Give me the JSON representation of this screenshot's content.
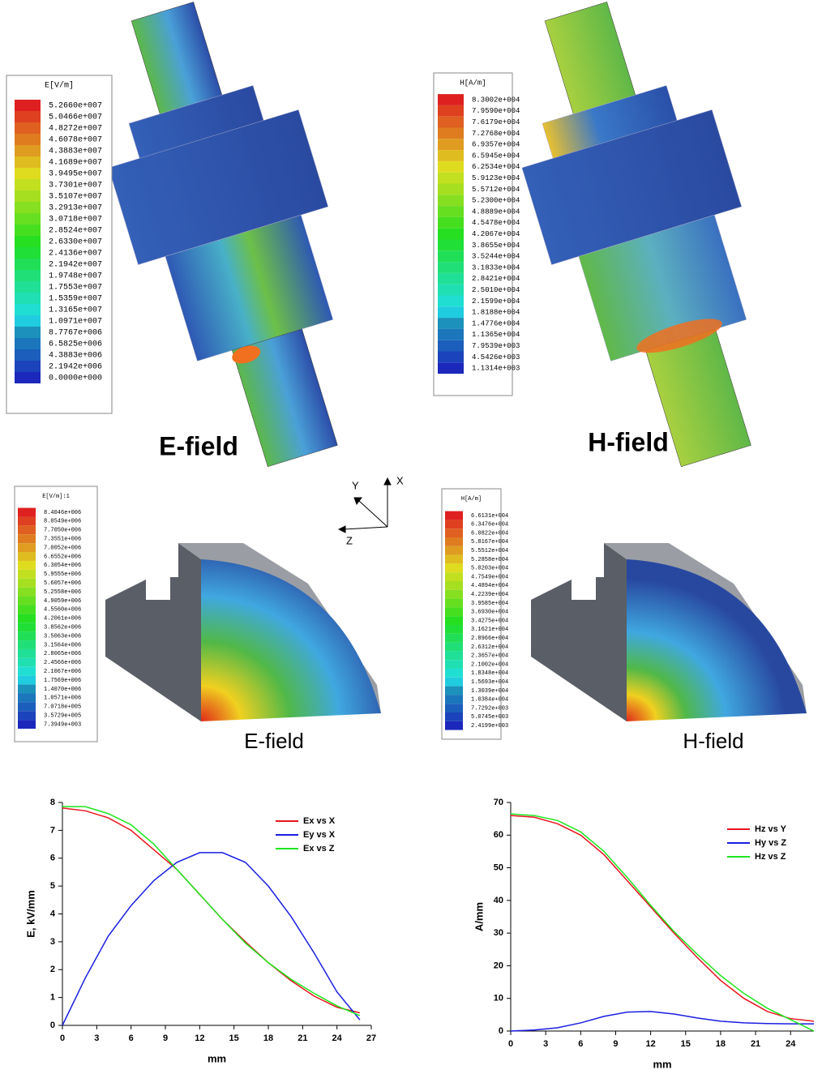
{
  "panels": [
    {
      "legend_title": "E[V/m]",
      "caption": "E-field",
      "legend_values": [
        "5.2660e+007",
        "5.0466e+007",
        "4.8272e+007",
        "4.6078e+007",
        "4.3883e+007",
        "4.1689e+007",
        "3.9495e+007",
        "3.7301e+007",
        "3.5107e+007",
        "3.2913e+007",
        "3.0718e+007",
        "2.8524e+007",
        "2.6330e+007",
        "2.4136e+007",
        "2.1942e+007",
        "1.9748e+007",
        "1.7553e+007",
        "1.5359e+007",
        "1.3165e+007",
        "1.0971e+007",
        "8.7767e+006",
        "6.5825e+006",
        "4.3883e+006",
        "2.1942e+006",
        "0.0000e+000"
      ]
    },
    {
      "legend_title": "H[A/m]",
      "caption": "H-field",
      "legend_values": [
        "8.3002e+004",
        "7.9590e+004",
        "7.6179e+004",
        "7.2768e+004",
        "6.9357e+004",
        "6.5945e+004",
        "6.2534e+004",
        "5.9123e+004",
        "5.5712e+004",
        "5.2300e+004",
        "4.8889e+004",
        "4.5478e+004",
        "4.2067e+004",
        "3.8655e+004",
        "3.5244e+004",
        "3.1833e+004",
        "2.8421e+004",
        "2.5010e+004",
        "2.1599e+004",
        "1.8188e+004",
        "1.4776e+004",
        "1.1365e+004",
        "7.9539e+003",
        "4.5426e+003",
        "1.1314e+003"
      ]
    },
    {
      "legend_title": "E[V/m]:1",
      "caption": "E-field",
      "legend_values": [
        "8.4046e+006",
        "8.0549e+006",
        "7.7050e+006",
        "7.3551e+006",
        "7.0052e+006",
        "6.6552e+006",
        "6.3054e+006",
        "5.9555e+006",
        "5.6057e+006",
        "5.2558e+006",
        "4.9059e+006",
        "4.5560e+006",
        "4.2061e+006",
        "3.8562e+006",
        "3.5063e+006",
        "3.1564e+006",
        "2.8065e+006",
        "2.4566e+006",
        "2.1067e+006",
        "1.7569e+006",
        "1.4070e+006",
        "1.0571e+006",
        "7.0718e+005",
        "3.5729e+005",
        "7.3949e+003"
      ]
    },
    {
      "legend_title": "H[A/m]",
      "caption": "H-field",
      "legend_values": [
        "6.6131e+004",
        "6.3476e+004",
        "6.0822e+004",
        "5.8167e+004",
        "5.5512e+004",
        "5.2858e+004",
        "5.0203e+004",
        "4.7549e+004",
        "4.4894e+004",
        "4.2239e+004",
        "3.9585e+004",
        "3.6930e+004",
        "3.4275e+004",
        "3.1621e+004",
        "2.8966e+004",
        "2.6312e+004",
        "2.3657e+004",
        "2.1002e+004",
        "1.8348e+004",
        "1.5693e+004",
        "1.3039e+004",
        "1.0384e+004",
        "7.7292e+003",
        "5.0745e+003",
        "2.4199e+003"
      ]
    }
  ],
  "axes_triad": {
    "labels": [
      "Y",
      "X",
      "Z"
    ]
  },
  "chart_data": [
    {
      "type": "line",
      "xlabel": "mm",
      "ylabel": "E, kV/mm",
      "x": [
        0,
        2,
        4,
        6,
        8,
        10,
        12,
        14,
        16,
        18,
        20,
        22,
        24,
        26
      ],
      "series": [
        {
          "name": "Ex vs X",
          "color": "#e8141e",
          "values": [
            7.8,
            7.7,
            7.45,
            7.0,
            6.3,
            5.6,
            4.7,
            3.8,
            3.0,
            2.25,
            1.6,
            1.05,
            0.65,
            0.45
          ]
        },
        {
          "name": "Ey vs X",
          "color": "#1a1ee0",
          "values": [
            0,
            1.7,
            3.2,
            4.3,
            5.2,
            5.85,
            6.2,
            6.2,
            5.85,
            5.0,
            3.9,
            2.6,
            1.2,
            0.2
          ]
        },
        {
          "name": "Ex vs Z",
          "color": "#1ee61e",
          "values": [
            7.85,
            7.85,
            7.6,
            7.2,
            6.5,
            5.6,
            4.7,
            3.8,
            2.95,
            2.25,
            1.65,
            1.15,
            0.7,
            0.35
          ]
        }
      ],
      "xlim": [
        0,
        27
      ],
      "xticks": [
        0,
        3,
        6,
        9,
        12,
        15,
        18,
        21,
        24,
        27
      ],
      "ylim": [
        0,
        8
      ],
      "yticks": [
        0,
        1,
        2,
        3,
        4,
        5,
        6,
        7,
        8
      ]
    },
    {
      "type": "line",
      "xlabel": "mm",
      "ylabel": "A/mm",
      "x": [
        0,
        2,
        4,
        6,
        8,
        10,
        12,
        14,
        16,
        18,
        20,
        22,
        24,
        26
      ],
      "series": [
        {
          "name": "Hz vs Y",
          "color": "#e8141e",
          "values": [
            66,
            65.5,
            63.5,
            60,
            54,
            46,
            38,
            30,
            22.5,
            15.5,
            10,
            6,
            3.8,
            3
          ]
        },
        {
          "name": "Hy vs Z",
          "color": "#1a1ee0",
          "values": [
            0,
            0.3,
            1,
            2.5,
            4.5,
            5.8,
            6,
            5.2,
            4,
            3,
            2.5,
            2.3,
            2.2,
            2.2
          ]
        },
        {
          "name": "Hz vs Z",
          "color": "#1ee61e",
          "values": [
            66.5,
            66,
            64.5,
            61,
            55,
            47,
            38.5,
            30.5,
            23.5,
            17,
            11.5,
            7,
            3.5,
            0
          ]
        }
      ],
      "xlim": [
        0,
        26
      ],
      "xticks": [
        0,
        3,
        6,
        9,
        12,
        15,
        18,
        21,
        24
      ],
      "ylim": [
        0,
        70
      ],
      "yticks": [
        0,
        10,
        20,
        30,
        40,
        50,
        60,
        70
      ]
    }
  ]
}
